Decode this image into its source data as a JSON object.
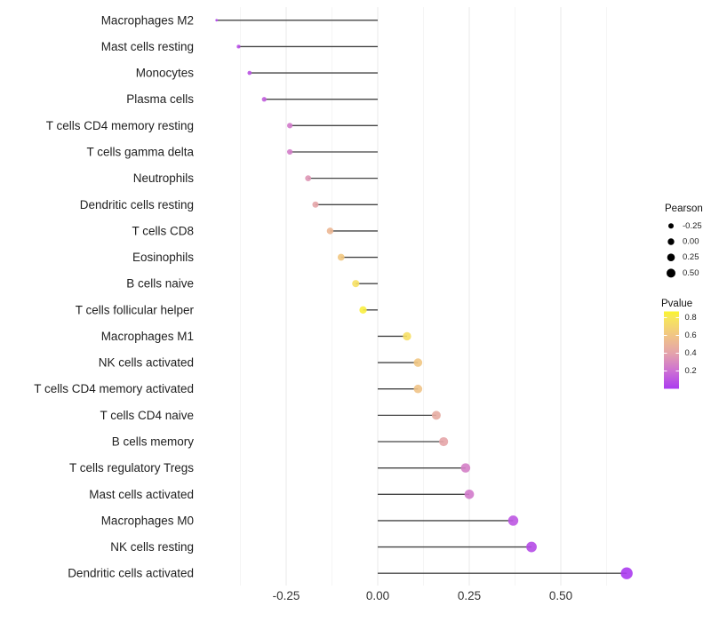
{
  "chart_data": {
    "type": "scatter",
    "subtype": "lollipop-horizontal",
    "title": "",
    "xlabel": "",
    "ylabel": "",
    "xlim": [
      -0.48,
      0.73
    ],
    "grid": "vertical-only",
    "x_ticks": [
      -0.25,
      0.0,
      0.25,
      0.5
    ],
    "x_tick_labels": [
      "-0.25",
      "0.00",
      "0.25",
      "0.50"
    ],
    "x_minor_ticks": [
      -0.375,
      -0.125,
      0.125,
      0.375,
      0.625
    ],
    "rows": [
      {
        "label": "Macrophages M2",
        "pearson": -0.44,
        "pvalue": 0.03
      },
      {
        "label": "Mast cells resting",
        "pearson": -0.38,
        "pvalue": 0.07
      },
      {
        "label": "Monocytes",
        "pearson": -0.35,
        "pvalue": 0.09
      },
      {
        "label": "Plasma cells",
        "pearson": -0.31,
        "pvalue": 0.13
      },
      {
        "label": "T cells CD4 memory resting",
        "pearson": -0.24,
        "pvalue": 0.24
      },
      {
        "label": "T cells gamma delta",
        "pearson": -0.24,
        "pvalue": 0.25
      },
      {
        "label": "Neutrophils",
        "pearson": -0.19,
        "pvalue": 0.35
      },
      {
        "label": "Dendritic cells resting",
        "pearson": -0.17,
        "pvalue": 0.41
      },
      {
        "label": "T cells CD8",
        "pearson": -0.13,
        "pvalue": 0.52
      },
      {
        "label": "Eosinophils",
        "pearson": -0.1,
        "pvalue": 0.62
      },
      {
        "label": "B cells naive",
        "pearson": -0.06,
        "pvalue": 0.76
      },
      {
        "label": "T cells follicular helper",
        "pearson": -0.04,
        "pvalue": 0.84
      },
      {
        "label": "Macrophages M1",
        "pearson": 0.08,
        "pvalue": 0.75
      },
      {
        "label": "NK cells activated",
        "pearson": 0.11,
        "pvalue": 0.61
      },
      {
        "label": "T cells CD4 memory activated",
        "pearson": 0.11,
        "pvalue": 0.59
      },
      {
        "label": "T cells CD4 naive",
        "pearson": 0.16,
        "pvalue": 0.45
      },
      {
        "label": "B cells memory",
        "pearson": 0.18,
        "pvalue": 0.41
      },
      {
        "label": "T cells regulatory  Tregs",
        "pearson": 0.24,
        "pvalue": 0.26
      },
      {
        "label": "Mast cells activated",
        "pearson": 0.25,
        "pvalue": 0.24
      },
      {
        "label": "Macrophages M0",
        "pearson": 0.37,
        "pvalue": 0.1
      },
      {
        "label": "NK cells resting",
        "pearson": 0.42,
        "pvalue": 0.06
      },
      {
        "label": "Dendritic cells activated",
        "pearson": 0.68,
        "pvalue": 0.001
      }
    ],
    "legend": {
      "position": "right",
      "pearson_title": "Pearson",
      "size_items": [
        {
          "label": "-0.25",
          "value": -0.25
        },
        {
          "label": "0.00",
          "value": 0.0
        },
        {
          "label": "0.25",
          "value": 0.25
        },
        {
          "label": "0.50",
          "value": 0.5
        }
      ],
      "pvalue_title": "Pvalue",
      "colorbar_tick_labels": [
        "0.8",
        "0.6",
        "0.4",
        "0.2"
      ],
      "colorbar_tick_values": [
        0.8,
        0.6,
        0.4,
        0.2
      ],
      "colorbar_range": [
        0.0,
        0.87
      ],
      "gradient_stops": [
        {
          "p": 0.0,
          "color": "#AB3BF0"
        },
        {
          "p": 0.2,
          "color": "#CD70D3"
        },
        {
          "p": 0.4,
          "color": "#E4A3AB"
        },
        {
          "p": 0.6,
          "color": "#F1C585"
        },
        {
          "p": 0.8,
          "color": "#F7E75A"
        },
        {
          "p": 0.87,
          "color": "#FAF42C"
        }
      ]
    },
    "colors": {
      "stick": "#454545",
      "grid_major": "#e9e9e9",
      "grid_minor": "#f5f5f5",
      "legend_dot": "#000000",
      "background": "#ffffff"
    }
  }
}
